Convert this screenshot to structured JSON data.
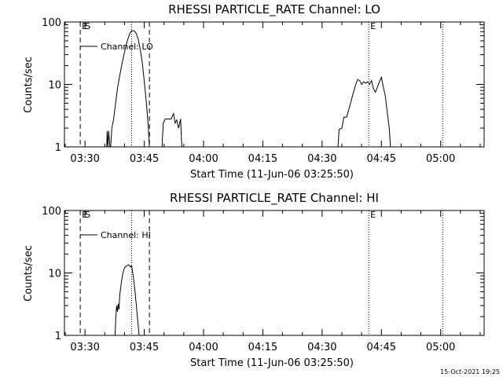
{
  "footer": {
    "timestamp": "15-Oct-2021 19:25"
  },
  "chart_data": [
    {
      "type": "line",
      "title": "RHESSI PARTICLE_RATE Channel: LO",
      "xlabel": "Start Time (11-Jun-06 03:25:50)",
      "ylabel": "Counts/sec",
      "y_scale": "log",
      "ylim": [
        1,
        100
      ],
      "xlim_minutes_from_0330": [
        -5.2,
        101
      ],
      "x_ticks": [
        "03:30",
        "03:45",
        "04:00",
        "04:15",
        "04:30",
        "04:45",
        "05:00"
      ],
      "y_ticks": [
        "1",
        "10",
        "100"
      ],
      "legend": {
        "position": "top-left",
        "label": "Channel: LO"
      },
      "markers": [
        {
          "label": "E",
          "x": -1.2,
          "style": "dashed"
        },
        {
          "label": "S",
          "x": -1.2,
          "style": "none"
        },
        {
          "label": "",
          "x": 16.3,
          "style": "dashed"
        },
        {
          "label": "",
          "x": 11.8,
          "style": "dotted"
        },
        {
          "label": "E",
          "x": 71.8,
          "style": "dotted"
        },
        {
          "label": "",
          "x": 90.5,
          "style": "dotted"
        }
      ],
      "series": [
        {
          "segments": [
            [
              [
                5.5,
                1
              ],
              [
                5.6,
                1.8
              ],
              [
                5.8,
                1.0
              ],
              [
                6.0,
                1.8
              ],
              [
                6.3,
                1.0
              ],
              [
                6.5,
                1.0
              ],
              [
                6.8,
                2.0
              ],
              [
                7.2,
                2.7
              ],
              [
                7.7,
                4.8
              ],
              [
                8.2,
                8.5
              ],
              [
                8.8,
                14
              ],
              [
                9.4,
                22
              ],
              [
                10,
                33
              ],
              [
                10.5,
                45
              ],
              [
                11,
                57
              ],
              [
                11.4,
                67
              ],
              [
                11.8,
                72
              ],
              [
                12.2,
                73
              ],
              [
                12.6,
                70
              ],
              [
                13,
                65
              ],
              [
                13.5,
                52
              ],
              [
                14,
                36
              ],
              [
                14.5,
                22
              ],
              [
                15,
                11
              ],
              [
                15.5,
                5.4
              ],
              [
                16,
                2.2
              ],
              [
                16.3,
                1
              ]
            ],
            [
              [
                19.5,
                1
              ],
              [
                19.8,
                2.4
              ],
              [
                20.3,
                2.8
              ],
              [
                21,
                2.8
              ],
              [
                21.8,
                2.8
              ],
              [
                22.4,
                3.4
              ],
              [
                22.8,
                2.4
              ],
              [
                23.2,
                2.7
              ],
              [
                23.7,
                2.0
              ],
              [
                24.2,
                2.8
              ],
              [
                24.5,
                1
              ]
            ],
            [
              [
                64,
                1
              ],
              [
                64.3,
                1.9
              ],
              [
                65,
                2.0
              ],
              [
                65.5,
                3.0
              ],
              [
                66.2,
                3.0
              ],
              [
                67,
                4.5
              ],
              [
                67.8,
                7.0
              ],
              [
                68.5,
                10
              ],
              [
                69,
                12
              ],
              [
                69.5,
                11.5
              ],
              [
                70,
                10
              ],
              [
                70.5,
                11
              ],
              [
                71,
                10.5
              ],
              [
                71.5,
                11
              ],
              [
                72,
                10
              ],
              [
                72.5,
                11.5
              ],
              [
                73,
                8.5
              ],
              [
                73.5,
                7.5
              ],
              [
                74,
                9
              ],
              [
                74.5,
                11
              ],
              [
                75,
                13
              ],
              [
                75.5,
                9
              ],
              [
                76,
                6.5
              ],
              [
                76.5,
                3.5
              ],
              [
                77,
                2
              ],
              [
                77.3,
                1
              ]
            ]
          ]
        }
      ]
    },
    {
      "type": "line",
      "title": "RHESSI PARTICLE_RATE Channel: HI",
      "xlabel": "Start Time (11-Jun-06 03:25:50)",
      "ylabel": "Counts/sec",
      "y_scale": "log",
      "ylim": [
        1,
        100
      ],
      "xlim_minutes_from_0330": [
        -5.2,
        101
      ],
      "x_ticks": [
        "03:30",
        "03:45",
        "04:00",
        "04:15",
        "04:30",
        "04:45",
        "05:00"
      ],
      "y_ticks": [
        "1",
        "10",
        "100"
      ],
      "legend": {
        "position": "top-left",
        "label": "Channel: HI"
      },
      "markers": [
        {
          "label": "E",
          "x": -1.2,
          "style": "dashed"
        },
        {
          "label": "S",
          "x": -1.2,
          "style": "none"
        },
        {
          "label": "",
          "x": 16.3,
          "style": "dashed"
        },
        {
          "label": "",
          "x": 11.8,
          "style": "dotted"
        },
        {
          "label": "E",
          "x": 71.8,
          "style": "dotted"
        },
        {
          "label": "",
          "x": 90.5,
          "style": "dotted"
        }
      ],
      "series": [
        {
          "segments": [
            [
              [
                7.6,
                1
              ],
              [
                7.8,
                2.0
              ],
              [
                8.0,
                3.0
              ],
              [
                8.2,
                2.4
              ],
              [
                8.4,
                3.2
              ],
              [
                8.6,
                2.6
              ],
              [
                8.8,
                4.5
              ],
              [
                9.2,
                7
              ],
              [
                9.6,
                10
              ],
              [
                10,
                12
              ],
              [
                10.5,
                13
              ],
              [
                11,
                13.5
              ],
              [
                11.5,
                12.5
              ],
              [
                11.8,
                13
              ],
              [
                12.2,
                9
              ],
              [
                12.6,
                5.5
              ],
              [
                13,
                3
              ],
              [
                13.4,
                1.6
              ],
              [
                13.7,
                1
              ]
            ]
          ]
        }
      ]
    }
  ]
}
